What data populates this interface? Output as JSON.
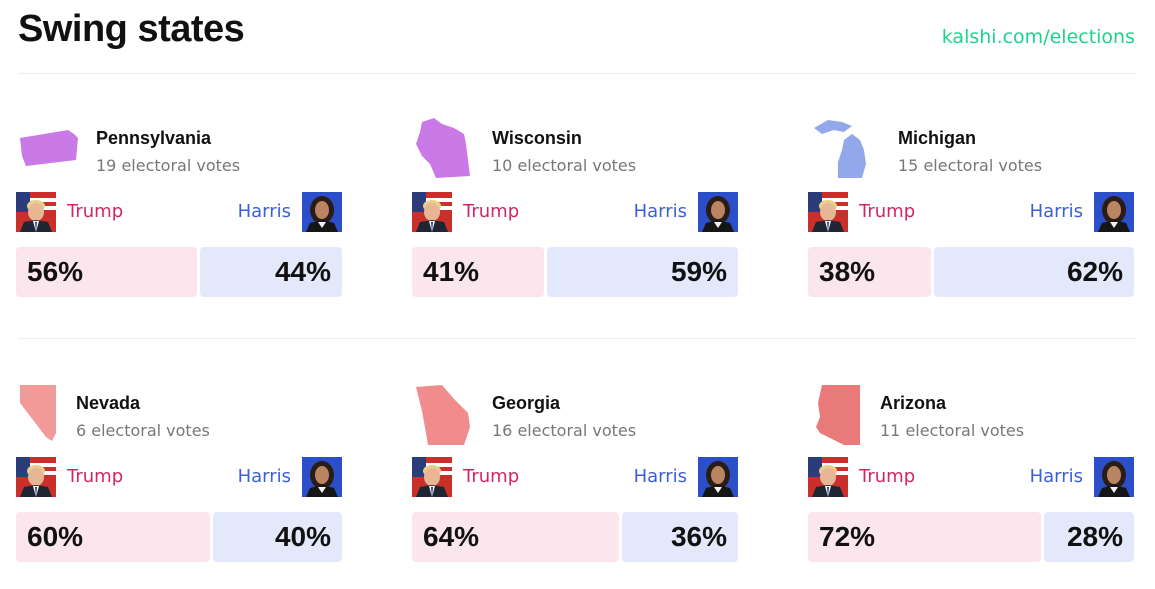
{
  "page": {
    "title": "Swing states",
    "link": "kalshi.com/elections"
  },
  "candidates": {
    "trump": {
      "name": "Trump",
      "color": "#d4265d",
      "bar_color": "#fce6ee"
    },
    "harris": {
      "name": "Harris",
      "color": "#3a5fd9",
      "bar_color": "#e3e9fb"
    }
  },
  "states": [
    {
      "name": "Pennsylvania",
      "votes": "19 electoral votes",
      "trump_pct": "56%",
      "harris_pct": "44%",
      "trump_share": 0.56,
      "shape_icon": "pennsylvania-shape-icon",
      "shape_color": "#c97ae6"
    },
    {
      "name": "Wisconsin",
      "votes": "10 electoral votes",
      "trump_pct": "41%",
      "harris_pct": "59%",
      "trump_share": 0.41,
      "shape_icon": "wisconsin-shape-icon",
      "shape_color": "#c97ae6"
    },
    {
      "name": "Michigan",
      "votes": "15 electoral votes",
      "trump_pct": "38%",
      "harris_pct": "62%",
      "trump_share": 0.38,
      "shape_icon": "michigan-shape-icon",
      "shape_color": "#93a8ea"
    },
    {
      "name": "Nevada",
      "votes": "6 electoral votes",
      "trump_pct": "60%",
      "harris_pct": "40%",
      "trump_share": 0.6,
      "shape_icon": "nevada-shape-icon",
      "shape_color": "#f09a9a"
    },
    {
      "name": "Georgia",
      "votes": "16 electoral votes",
      "trump_pct": "64%",
      "harris_pct": "36%",
      "trump_share": 0.64,
      "shape_icon": "georgia-shape-icon",
      "shape_color": "#f08c8c"
    },
    {
      "name": "Arizona",
      "votes": "11 electoral votes",
      "trump_pct": "72%",
      "harris_pct": "28%",
      "trump_share": 0.72,
      "shape_icon": "arizona-shape-icon",
      "shape_color": "#e97a7a"
    }
  ]
}
